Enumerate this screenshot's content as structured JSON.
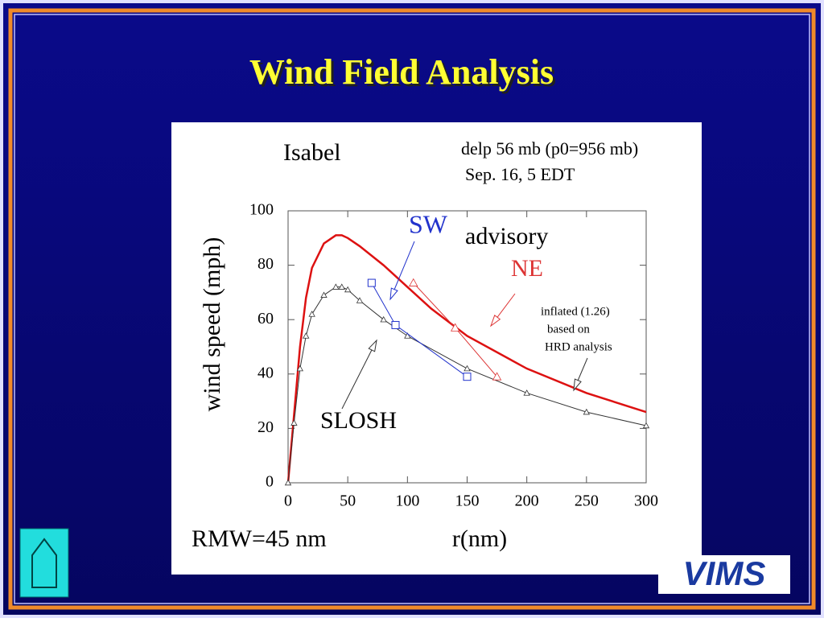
{
  "slide_title": "Wind Field Analysis",
  "logo": "VIMS",
  "chart_data": {
    "type": "line",
    "xlabel": "r(nm)",
    "ylabel": "wind speed (mph)",
    "xlim": [
      0,
      300
    ],
    "xticks": [
      0,
      50,
      100,
      150,
      200,
      250,
      300
    ],
    "ylim": [
      0,
      100
    ],
    "yticks": [
      0,
      20,
      40,
      60,
      80,
      100
    ],
    "annotations": [
      "Isabel",
      "delp 56 mb (p0=956 mb)",
      "Sep. 16, 5 EDT",
      "advisory",
      "based on",
      "HRD analysis",
      "RMW=45 nm"
    ],
    "series": [
      {
        "name": "inflated (1.26)",
        "color": "#dd1111",
        "marker": "none",
        "x": [
          0,
          5,
          10,
          15,
          20,
          30,
          40,
          45,
          50,
          60,
          80,
          100,
          120,
          150,
          200,
          250,
          300
        ],
        "values": [
          0,
          25,
          50,
          68,
          79,
          88,
          91,
          91,
          90,
          87,
          80,
          72,
          64,
          54,
          42,
          33,
          26
        ]
      },
      {
        "name": "SLOSH",
        "color": "#333333",
        "marker": "triangle",
        "x": [
          0,
          5,
          10,
          15,
          20,
          30,
          40,
          45,
          50,
          60,
          80,
          100,
          150,
          200,
          250,
          300
        ],
        "values": [
          0,
          22,
          42,
          54,
          62,
          69,
          72,
          72,
          71,
          67,
          60,
          54,
          42,
          33,
          26,
          21
        ]
      },
      {
        "name": "SW",
        "color": "#2233cc",
        "marker": "square",
        "x": [
          70,
          90,
          150
        ],
        "values": [
          73.5,
          58,
          39
        ]
      },
      {
        "name": "NE",
        "color": "#dd3333",
        "marker": "triangle",
        "x": [
          105,
          140,
          175
        ],
        "values": [
          73.5,
          57,
          39
        ]
      }
    ]
  }
}
